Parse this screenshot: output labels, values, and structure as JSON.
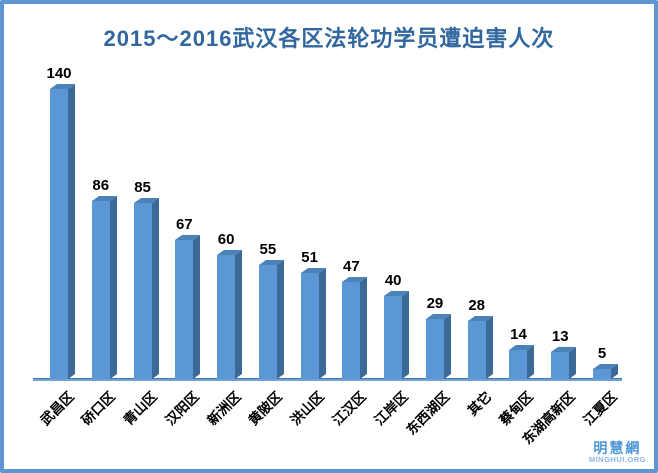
{
  "chart_data": {
    "type": "bar",
    "title": "2015～2016武汉各区法轮功学员遭迫害人次",
    "categories": [
      "武昌区",
      "硚口区",
      "青山区",
      "汉阳区",
      "新洲区",
      "黄陂区",
      "洪山区",
      "江汉区",
      "江岸区",
      "东西湖区",
      "其它",
      "蔡甸区",
      "东湖高新区",
      "江夏区"
    ],
    "values": [
      140,
      86,
      85,
      67,
      60,
      55,
      51,
      47,
      40,
      29,
      28,
      14,
      13,
      5
    ],
    "xlabel": "",
    "ylabel": "",
    "ylim": [
      0,
      150
    ],
    "grid": false,
    "legend": false,
    "data_labels": true,
    "style": "3d-bar",
    "colors": {
      "bar_front": "#5b97d4",
      "bar_side": "#3b6a98",
      "bar_top": "#4b82b8",
      "value_label": "#000000",
      "category_label": "#000000",
      "axis_line": "#71a3d8",
      "title": "#31679e"
    }
  },
  "frame": {
    "border_color": "#5e96d1",
    "background": "#ffffff"
  },
  "watermark": {
    "name": "明慧網",
    "url": "MINGHUI.ORG",
    "color": "#4e96d6"
  }
}
